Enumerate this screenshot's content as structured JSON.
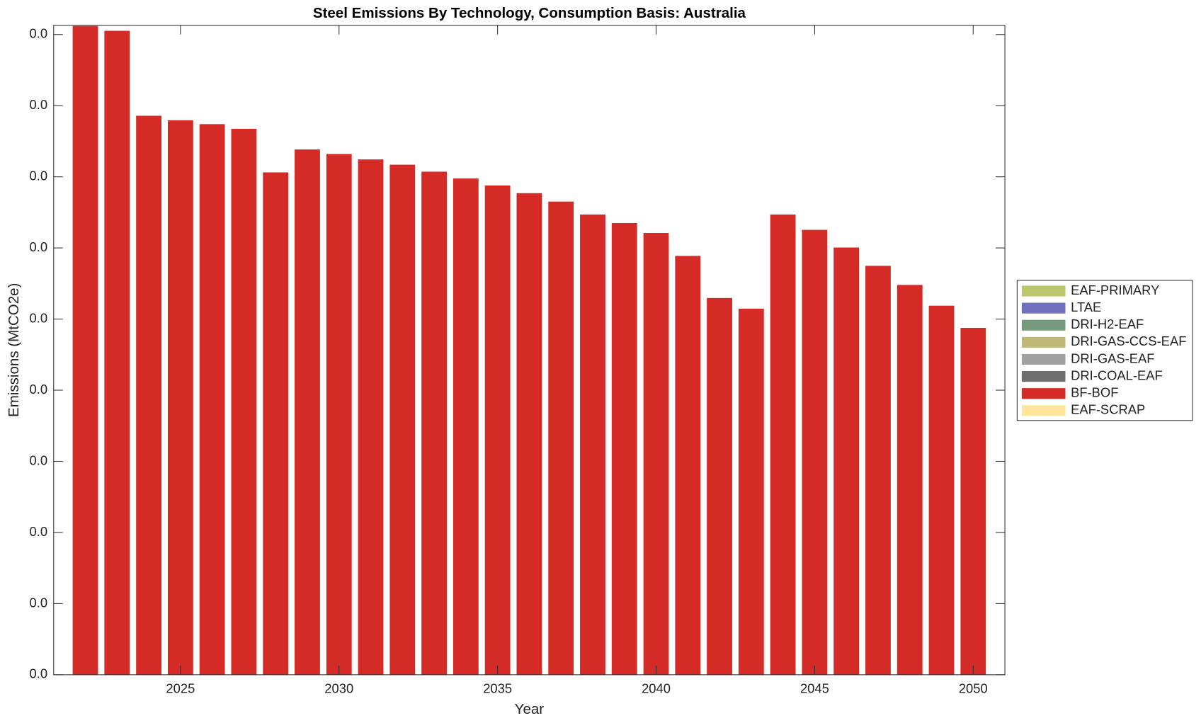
{
  "chart_data": {
    "type": "stacked-bar",
    "title": "Steel Emissions By Technology, Consumption Basis: Australia",
    "xlabel": "Year",
    "ylabel": "Emissions (MtCO2e)",
    "x": [
      2022,
      2023,
      2024,
      2025,
      2026,
      2027,
      2028,
      2029,
      2030,
      2031,
      2032,
      2033,
      2034,
      2035,
      2036,
      2037,
      2038,
      2039,
      2040,
      2041,
      2042,
      2043,
      2044,
      2045,
      2046,
      2047,
      2048,
      2049,
      2050
    ],
    "xlim": [
      2021,
      2051
    ],
    "xticks": [
      2025,
      2030,
      2035,
      2040,
      2045,
      2050
    ],
    "ylim": [
      0,
      0.04565
    ],
    "yticks": [
      {
        "value": 0,
        "label": "0.0"
      },
      {
        "value": 0.005,
        "label": "0.0"
      },
      {
        "value": 0.01,
        "label": "0.0"
      },
      {
        "value": 0.015,
        "label": "0.0"
      },
      {
        "value": 0.02,
        "label": "0.0"
      },
      {
        "value": 0.025,
        "label": "0.0"
      },
      {
        "value": 0.03,
        "label": "0.0"
      },
      {
        "value": 0.035,
        "label": "0.0"
      },
      {
        "value": 0.04,
        "label": "0.0"
      },
      {
        "value": 0.045,
        "label": "0.0"
      }
    ],
    "legend": "outside-right",
    "series": [
      {
        "name": "EAF-PRIMARY",
        "color": "#bcc66a",
        "values": [
          0,
          0,
          0,
          0,
          0,
          0,
          0,
          0,
          0,
          0,
          0,
          0,
          0,
          0,
          0,
          0,
          0,
          0,
          0,
          0,
          0,
          0,
          0,
          0,
          0,
          0,
          0,
          0,
          0
        ]
      },
      {
        "name": "LTAE",
        "color": "#7070bd",
        "values": [
          0,
          0,
          0,
          0,
          0,
          0,
          0,
          0,
          0,
          0,
          0,
          0,
          0,
          0,
          0,
          0,
          0,
          0,
          0,
          0,
          0,
          0,
          0,
          0,
          0,
          0,
          0,
          0,
          0
        ]
      },
      {
        "name": "DRI-H2-EAF",
        "color": "#789a7c",
        "values": [
          0,
          0,
          0,
          0,
          0,
          0,
          0,
          0,
          0,
          0,
          0,
          0,
          0,
          0,
          0,
          0,
          0,
          0,
          0,
          0,
          0,
          0,
          0,
          0,
          0,
          0,
          0,
          0,
          0
        ]
      },
      {
        "name": "DRI-GAS-CCS-EAF",
        "color": "#c0b878",
        "values": [
          0,
          0,
          0,
          0,
          0,
          0,
          0,
          0,
          0,
          0,
          0,
          0,
          0,
          0,
          0,
          0,
          0,
          0,
          0,
          0,
          0,
          0,
          0,
          0,
          0,
          0,
          0,
          0,
          0
        ]
      },
      {
        "name": "DRI-GAS-EAF",
        "color": "#a0a0a0",
        "values": [
          0,
          0,
          0,
          0,
          0,
          0,
          0,
          0,
          0,
          0,
          0,
          0,
          0,
          0,
          0,
          0,
          0,
          0,
          0,
          0,
          0,
          0,
          0,
          0,
          0,
          0,
          0,
          0,
          0
        ]
      },
      {
        "name": "DRI-COAL-EAF",
        "color": "#6e6e6e",
        "values": [
          0,
          0,
          0,
          0,
          0,
          0,
          0,
          0,
          0,
          0,
          0,
          0,
          0,
          0,
          0,
          0,
          0,
          0,
          0,
          0,
          0,
          0,
          0,
          0,
          0,
          0,
          0,
          0,
          0
        ]
      },
      {
        "name": "BF-BOF",
        "color": "#d42b26",
        "values": [
          0.0456,
          0.04526,
          0.03929,
          0.03897,
          0.0387,
          0.03837,
          0.03531,
          0.03692,
          0.0366,
          0.03622,
          0.03585,
          0.03536,
          0.03488,
          0.03439,
          0.03385,
          0.03326,
          0.03235,
          0.03175,
          0.03105,
          0.02944,
          0.02648,
          0.02573,
          0.03235,
          0.03127,
          0.03003,
          0.02874,
          0.0274,
          0.02594,
          0.02438
        ]
      },
      {
        "name": "EAF-SCRAP",
        "color": "#fde59a",
        "values": [
          0,
          0,
          0,
          0,
          0,
          0,
          0,
          0,
          0,
          0,
          0,
          0,
          0,
          0,
          0,
          0,
          0,
          0,
          0,
          0,
          0,
          0,
          0,
          0,
          0,
          0,
          0,
          0,
          0
        ]
      }
    ]
  }
}
